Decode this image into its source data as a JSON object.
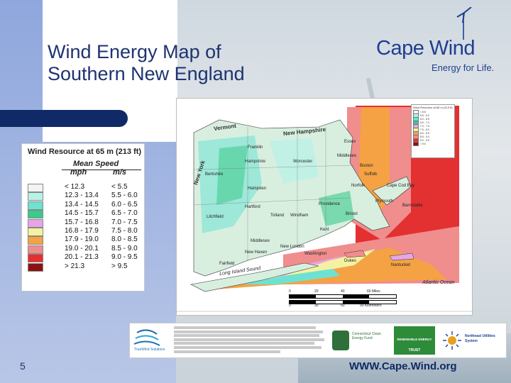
{
  "slide": {
    "title": "Wind Energy Map of\nSouthern New England",
    "page_number": "5",
    "url": "WWW.Cape.Wind.org"
  },
  "logo": {
    "name": "Cape Wind",
    "tagline": "Energy for Life."
  },
  "legend": {
    "title": "Wind Resource at 65 m (213 ft)",
    "subtitle": "Mean Speed",
    "col_mph": "mph",
    "col_ms": "m/s",
    "rows": [
      {
        "mph": "< 12.3",
        "ms": "< 5.5",
        "color": "#f3f3f3"
      },
      {
        "mph": "12.3 - 13.4",
        "ms": "5.5 - 6.0",
        "color": "#b7f2e6"
      },
      {
        "mph": "13.4 - 14.5",
        "ms": "6.0 - 6.5",
        "color": "#6de2d2"
      },
      {
        "mph": "14.5 - 15.7",
        "ms": "6.5 - 7.0",
        "color": "#3cc98c"
      },
      {
        "mph": "15.7 - 16.8",
        "ms": "7.0 - 7.5",
        "color": "#e6a6e6"
      },
      {
        "mph": "16.8 - 17.9",
        "ms": "7.5 - 8.0",
        "color": "#f4f2a2"
      },
      {
        "mph": "17.9 - 19.0",
        "ms": "8.0 - 8.5",
        "color": "#f4a244"
      },
      {
        "mph": "19.0 - 20.1",
        "ms": "8.5 - 9.0",
        "color": "#f08d8d"
      },
      {
        "mph": "20.1 - 21.3",
        "ms": "9.0 - 9.5",
        "color": "#e33030"
      },
      {
        "mph": "> 21.3",
        "ms": "> 9.5",
        "color": "#8a1212"
      }
    ]
  },
  "map": {
    "states": [
      "Vermont",
      "New Hampshire",
      "New York"
    ],
    "places": [
      "Franklin",
      "Essex",
      "Middlesex",
      "Hampshire",
      "Worcester",
      "Boston",
      "Suffolk",
      "Norfolk",
      "Berkshire",
      "Hampden",
      "Hartford",
      "Providence",
      "Bristol",
      "Plymouth",
      "Barnstable",
      "Litchfield",
      "Tolland",
      "Windham",
      "Kent",
      "Middlesex",
      "New London",
      "Washington",
      "Nantucket",
      "Fairfield",
      "New Haven",
      "Dukes",
      "Cape Cod Bay"
    ],
    "water": [
      "Long Island Sound",
      "Atlantic Ocean"
    ],
    "scale": {
      "distances": [
        "0",
        "20",
        "40",
        "60 Miles"
      ],
      "km": [
        "0",
        "30",
        "60",
        "90 Kilometers"
      ]
    }
  },
  "sponsors": {
    "truewind": "TrueWind Solutions",
    "ccef": "Connecticut Clean Energy Fund",
    "mass": "RENEWABLE ENERGY",
    "mass_trust": "TRUST",
    "nu": "Northeast Utilities System"
  }
}
